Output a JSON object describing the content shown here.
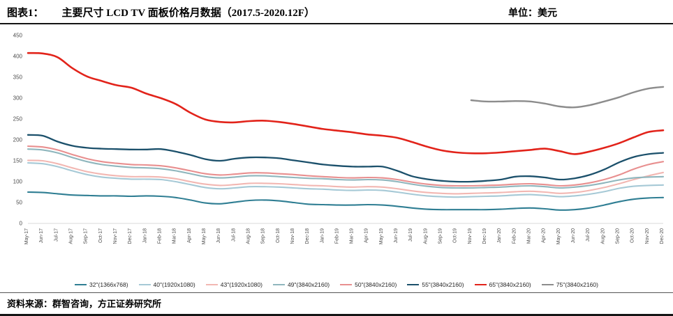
{
  "header": {
    "fig_label": "图表1：",
    "title": "主要尺寸 LCD TV 面板价格月数据（2017.5-2020.12F）",
    "unit": "单位：美元"
  },
  "footer": {
    "source": "资料来源：群智咨询，方正证券研究所"
  },
  "chart_data": {
    "type": "line",
    "title": "主要尺寸 LCD TV 面板价格月数据（2017.5-2020.12F）",
    "xlabel": "",
    "ylabel": "美元",
    "ylim": [
      0,
      450
    ],
    "ytick_step": 50,
    "grid": false,
    "legend_position": "bottom",
    "x": [
      "May-17",
      "Jun-17",
      "Jul-17",
      "Aug-17",
      "Sep-17",
      "Oct-17",
      "Nov-17",
      "Dec-17",
      "Jan-18",
      "Feb-18",
      "Mar-18",
      "Apr-18",
      "May-18",
      "Jun-18",
      "Jul-18",
      "Aug-18",
      "Sep-18",
      "Oct-18",
      "Nov-18",
      "Dec-18",
      "Jan-19",
      "Feb-19",
      "Mar-19",
      "Apr-19",
      "May-19",
      "Jun-19",
      "Jul-19",
      "Aug-19",
      "Sep-19",
      "Oct-19",
      "Nov-19",
      "Dec-19",
      "Jan-20",
      "Feb-20",
      "Mar-20",
      "Apr-20",
      "May-20",
      "Jun-20",
      "Jul-20",
      "Aug-20",
      "Sep-20",
      "Oct-20",
      "Nov-20",
      "Dec-20"
    ],
    "series": [
      {
        "name": "32\"(1366x768)",
        "color": "#2f7e93",
        "width": 2.1,
        "values": [
          75,
          74,
          71,
          68,
          67,
          66,
          66,
          65,
          66,
          65,
          62,
          56,
          49,
          47,
          51,
          55,
          56,
          54,
          50,
          46,
          45,
          44,
          44,
          45,
          44,
          41,
          37,
          34,
          33,
          33,
          33,
          33,
          34,
          36,
          37,
          35,
          32,
          33,
          37,
          44,
          52,
          58,
          61,
          62
        ]
      },
      {
        "name": "40\"(1920x1080)",
        "color": "#a6c9d6",
        "width": 2.1,
        "values": [
          145,
          143,
          136,
          126,
          117,
          111,
          108,
          106,
          106,
          105,
          100,
          93,
          86,
          83,
          85,
          88,
          88,
          87,
          85,
          83,
          82,
          80,
          79,
          80,
          79,
          75,
          70,
          66,
          64,
          63,
          64,
          65,
          66,
          68,
          69,
          67,
          64,
          66,
          70,
          76,
          84,
          89,
          91,
          92
        ]
      },
      {
        "name": "43\"(1920x1080)",
        "color": "#f2b7b2",
        "width": 2.1,
        "values": [
          151,
          150,
          143,
          133,
          124,
          118,
          114,
          112,
          112,
          111,
          107,
          100,
          94,
          91,
          93,
          96,
          96,
          95,
          93,
          91,
          90,
          88,
          87,
          88,
          87,
          83,
          78,
          74,
          72,
          71,
          72,
          73,
          74,
          76,
          77,
          75,
          72,
          74,
          79,
          86,
          95,
          105,
          114,
          122
        ]
      },
      {
        "name": "49\"(3840x2160)",
        "color": "#8fb6bd",
        "width": 2.1,
        "values": [
          178,
          176,
          169,
          158,
          148,
          141,
          137,
          134,
          133,
          131,
          126,
          119,
          112,
          109,
          111,
          114,
          114,
          112,
          110,
          108,
          107,
          105,
          104,
          105,
          104,
          100,
          94,
          89,
          86,
          85,
          85,
          86,
          87,
          89,
          90,
          88,
          85,
          87,
          91,
          97,
          104,
          109,
          111,
          112
        ]
      },
      {
        "name": "50\"(3840x2160)",
        "color": "#e88f8f",
        "width": 2.1,
        "values": [
          185,
          183,
          176,
          165,
          155,
          148,
          144,
          141,
          140,
          138,
          133,
          126,
          119,
          116,
          118,
          121,
          121,
          119,
          117,
          114,
          112,
          110,
          109,
          110,
          109,
          105,
          99,
          94,
          91,
          90,
          90,
          91,
          92,
          94,
          95,
          93,
          90,
          92,
          97,
          105,
          116,
          130,
          141,
          148
        ]
      },
      {
        "name": "55\"(3840x2160)",
        "color": "#1b506b",
        "width": 2.3,
        "values": [
          212,
          210,
          196,
          186,
          181,
          179,
          178,
          177,
          177,
          178,
          172,
          164,
          154,
          150,
          155,
          158,
          158,
          156,
          151,
          146,
          141,
          138,
          136,
          136,
          136,
          126,
          113,
          106,
          102,
          100,
          100,
          102,
          105,
          112,
          113,
          110,
          105,
          108,
          116,
          129,
          146,
          159,
          166,
          169
        ]
      },
      {
        "name": "65\"(3840x2160)",
        "color": "#e2231a",
        "width": 2.6,
        "values": [
          408,
          407,
          398,
          372,
          352,
          341,
          331,
          325,
          311,
          300,
          286,
          265,
          249,
          243,
          242,
          245,
          246,
          243,
          238,
          232,
          226,
          222,
          218,
          213,
          210,
          205,
          195,
          184,
          175,
          170,
          168,
          168,
          170,
          173,
          176,
          179,
          173,
          166,
          172,
          181,
          192,
          206,
          219,
          223
        ]
      },
      {
        "name": "75\"(3840x2160)",
        "color": "#8c8c8c",
        "width": 2.4,
        "values": [
          null,
          null,
          null,
          null,
          null,
          null,
          null,
          null,
          null,
          null,
          null,
          null,
          null,
          null,
          null,
          null,
          null,
          null,
          null,
          null,
          null,
          null,
          null,
          null,
          null,
          null,
          null,
          null,
          null,
          null,
          295,
          292,
          292,
          293,
          292,
          287,
          280,
          278,
          283,
          292,
          302,
          314,
          323,
          327
        ]
      }
    ]
  }
}
